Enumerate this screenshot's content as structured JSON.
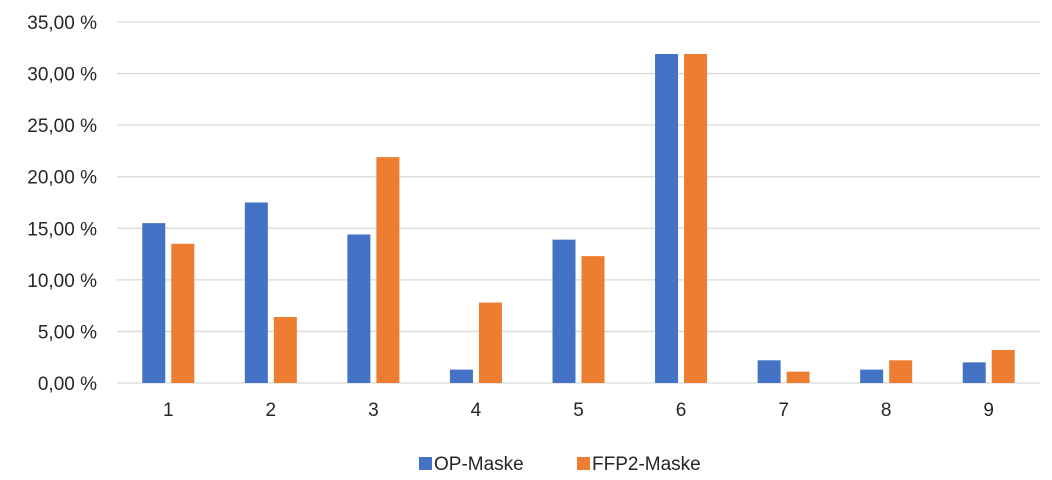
{
  "chart_data": {
    "type": "bar",
    "categories": [
      "1",
      "2",
      "3",
      "4",
      "5",
      "6",
      "7",
      "8",
      "9"
    ],
    "series": [
      {
        "name": "OP-Maske",
        "color": "#4472C4",
        "values": [
          15.5,
          17.5,
          14.4,
          1.3,
          13.9,
          31.9,
          2.2,
          1.3,
          2.0
        ]
      },
      {
        "name": "FFP2-Maske",
        "color": "#ED7D31",
        "values": [
          13.5,
          6.4,
          21.9,
          7.8,
          12.3,
          31.9,
          1.1,
          2.2,
          3.2
        ]
      }
    ],
    "ylim": [
      0,
      35
    ],
    "yticks": [
      "0,00 %",
      "5,00 %",
      "10,00 %",
      "15,00 %",
      "20,00 %",
      "25,00 %",
      "30,00 %",
      "35,00 %"
    ],
    "grid": true,
    "legend_position": "bottom-center",
    "gridline_color": "#D9D9D9"
  }
}
